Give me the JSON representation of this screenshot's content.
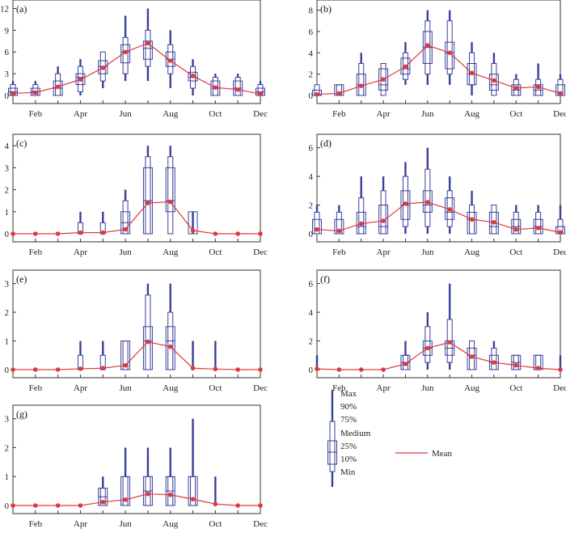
{
  "months_labeled": [
    "Feb",
    "Apr",
    "Jun",
    "Aug",
    "Oct",
    "Dec"
  ],
  "colors": {
    "box": "#3a3f9a",
    "mean": "#e0393e",
    "axis": "#333333"
  },
  "legend": {
    "stats": [
      "Max",
      "90%",
      "75%",
      "Medium",
      "25%",
      "10%",
      "Min"
    ],
    "mean_label": "Mean"
  },
  "chart_data": [
    {
      "type": "box",
      "panel_label": "(a)",
      "ylim": [
        0,
        12.5
      ],
      "yticks": [
        0,
        3,
        6,
        9,
        12
      ],
      "months": [
        1,
        2,
        3,
        4,
        5,
        6,
        7,
        8,
        9,
        10,
        11,
        12
      ],
      "min": [
        0,
        0,
        0,
        0,
        1,
        2,
        2,
        1,
        0,
        0,
        0,
        0
      ],
      "p10": [
        0,
        0,
        0,
        0.5,
        2,
        3,
        4,
        3,
        1,
        0,
        0,
        0
      ],
      "q1": [
        0,
        0,
        0,
        1.5,
        3,
        4.5,
        5,
        4,
        2,
        0,
        0,
        0
      ],
      "median": [
        0.5,
        0.5,
        1,
        2.5,
        4,
        6,
        6.5,
        5,
        2.5,
        1,
        1,
        0.5
      ],
      "q3": [
        1,
        1,
        2,
        3,
        4.8,
        7,
        7.5,
        6,
        3.2,
        2,
        2,
        1
      ],
      "p90": [
        1.5,
        1.5,
        3,
        4,
        6,
        8,
        9,
        7,
        4,
        2.5,
        2.5,
        1.5
      ],
      "max": [
        2,
        2,
        4,
        5,
        6,
        11,
        12,
        9,
        5,
        3,
        3,
        2
      ],
      "mean": [
        0.3,
        0.4,
        1.2,
        2.2,
        3.8,
        6,
        7.2,
        4.8,
        2.7,
        1.1,
        0.8,
        0.2
      ]
    },
    {
      "type": "box",
      "panel_label": "(b)",
      "ylim": [
        0,
        8.5
      ],
      "yticks": [
        0,
        2,
        4,
        6,
        8
      ],
      "months": [
        1,
        2,
        3,
        4,
        5,
        6,
        7,
        8,
        9,
        10,
        11,
        12
      ],
      "min": [
        0,
        0,
        0,
        0,
        1,
        1,
        1,
        0,
        0,
        0,
        0,
        0
      ],
      "p10": [
        0,
        0,
        0,
        0,
        1.5,
        2,
        2,
        1,
        0,
        0,
        0,
        0
      ],
      "q1": [
        0,
        0,
        0,
        0.5,
        2,
        3,
        2.5,
        1,
        0.5,
        0,
        0,
        0
      ],
      "median": [
        0,
        0,
        1,
        1,
        2.5,
        4.5,
        4,
        2,
        1,
        0.5,
        0.5,
        0
      ],
      "q3": [
        0.5,
        1,
        2,
        2.5,
        3.5,
        6,
        5,
        3,
        2,
        1,
        1,
        1
      ],
      "p90": [
        1,
        1,
        3,
        3,
        4,
        7,
        7,
        4,
        3,
        1.5,
        1.5,
        1.5
      ],
      "max": [
        1,
        1,
        4,
        3,
        5,
        8,
        8,
        5,
        4,
        2,
        3,
        2
      ],
      "mean": [
        0.1,
        0.2,
        0.9,
        1.5,
        2.7,
        4.7,
        4,
        2.1,
        1.4,
        0.7,
        0.8,
        0.2
      ]
    },
    {
      "type": "box",
      "panel_label": "(c)",
      "ylim": [
        0,
        4.3
      ],
      "yticks": [
        0,
        1,
        2,
        3,
        4
      ],
      "months": [
        1,
        2,
        3,
        4,
        5,
        6,
        7,
        8,
        9,
        10,
        11,
        12
      ],
      "min": [
        0,
        0,
        0,
        0,
        0,
        0,
        0,
        0,
        0,
        0,
        0,
        0
      ],
      "p10": [
        0,
        0,
        0,
        0,
        0,
        0,
        0,
        0,
        0,
        0,
        0,
        0
      ],
      "q1": [
        0,
        0,
        0,
        0,
        0,
        0,
        0,
        1,
        0,
        0,
        0,
        0
      ],
      "median": [
        0,
        0,
        0,
        0,
        0,
        0.5,
        1.5,
        1.5,
        0,
        0,
        0,
        0
      ],
      "q3": [
        0,
        0,
        0,
        0,
        0,
        1,
        3,
        3,
        1,
        0,
        0,
        0
      ],
      "p90": [
        0,
        0,
        0,
        0.5,
        0.5,
        1.5,
        3.5,
        3.5,
        0,
        0,
        0,
        0
      ],
      "max": [
        0,
        0,
        0,
        1,
        1,
        2,
        4,
        4,
        1,
        0,
        0,
        0
      ],
      "mean": [
        0,
        0,
        0,
        0.05,
        0.05,
        0.2,
        1.4,
        1.45,
        0.15,
        0,
        0,
        0
      ]
    },
    {
      "type": "box",
      "panel_label": "(d)",
      "ylim": [
        0,
        6.6
      ],
      "yticks": [
        0,
        2,
        4,
        6
      ],
      "months": [
        1,
        2,
        3,
        4,
        5,
        6,
        7,
        8,
        9,
        10,
        11,
        12
      ],
      "min": [
        0,
        0,
        0,
        0,
        0,
        0,
        0,
        0,
        0,
        0,
        0,
        0
      ],
      "p10": [
        0,
        0,
        0,
        0,
        0.5,
        0.5,
        0.5,
        0,
        0,
        0,
        0,
        0
      ],
      "q1": [
        0,
        0,
        0,
        0,
        1,
        1.5,
        1,
        0,
        0,
        0,
        0,
        0
      ],
      "median": [
        0,
        0,
        0.5,
        0.5,
        2,
        2,
        1.5,
        1,
        0.5,
        0.5,
        0.5,
        0
      ],
      "q3": [
        1,
        1,
        1.5,
        2,
        3,
        3,
        2.5,
        1.5,
        1.5,
        1,
        1,
        0.5
      ],
      "p90": [
        1.5,
        1.5,
        2.5,
        3,
        4,
        4.5,
        3,
        2,
        2,
        1.5,
        1.5,
        1
      ],
      "max": [
        2,
        2,
        4,
        4,
        5,
        6,
        4,
        3,
        2,
        2,
        2,
        2
      ],
      "mean": [
        0.3,
        0.2,
        0.7,
        0.9,
        2.1,
        2.2,
        1.7,
        1,
        0.8,
        0.3,
        0.4,
        0.1
      ]
    },
    {
      "type": "box",
      "panel_label": "(e)",
      "ylim": [
        0,
        3.3
      ],
      "yticks": [
        0,
        1,
        2,
        3
      ],
      "months": [
        1,
        2,
        3,
        4,
        5,
        6,
        7,
        8,
        9,
        10,
        11,
        12
      ],
      "min": [
        0,
        0,
        0,
        0,
        0,
        0,
        0,
        0,
        0,
        0,
        0,
        0
      ],
      "p10": [
        0,
        0,
        0,
        0,
        0,
        0,
        0,
        0,
        0,
        0,
        0,
        0
      ],
      "q1": [
        0,
        0,
        0,
        0,
        0,
        0,
        0,
        0,
        0,
        0,
        0,
        0
      ],
      "median": [
        0,
        0,
        0,
        0,
        0,
        0,
        1,
        1,
        0,
        0,
        0,
        0
      ],
      "q3": [
        0,
        0,
        0,
        0,
        0,
        1,
        1.5,
        1.5,
        0,
        0,
        0,
        0
      ],
      "p90": [
        0,
        0,
        0,
        0.5,
        0.5,
        1,
        2.6,
        2,
        0,
        0,
        0,
        0
      ],
      "max": [
        0,
        0,
        0,
        1,
        1,
        1,
        3,
        3,
        1,
        1,
        0,
        0
      ],
      "mean": [
        0,
        0,
        0,
        0.03,
        0.05,
        0.15,
        0.97,
        0.8,
        0.05,
        0.02,
        0,
        0
      ]
    },
    {
      "type": "box",
      "panel_label": "(f)",
      "ylim": [
        0,
        6.6
      ],
      "yticks": [
        0,
        2,
        4,
        6
      ],
      "months": [
        1,
        2,
        3,
        4,
        5,
        6,
        7,
        8,
        9,
        10,
        11,
        12
      ],
      "min": [
        0,
        0,
        0,
        0,
        0,
        0,
        0,
        0,
        0,
        0,
        0,
        0
      ],
      "p10": [
        0,
        0,
        0,
        0,
        0,
        0.5,
        0.5,
        0,
        0,
        0,
        0,
        0
      ],
      "q1": [
        0,
        0,
        0,
        0,
        0,
        1,
        1,
        0,
        0,
        0,
        0,
        0
      ],
      "median": [
        0,
        0,
        0,
        0,
        0.5,
        1.5,
        1.5,
        1,
        0.5,
        0.5,
        0,
        0
      ],
      "q3": [
        0,
        0,
        0,
        0,
        1,
        2,
        2,
        1.5,
        1,
        1,
        1,
        0
      ],
      "p90": [
        0,
        0,
        0,
        0,
        1,
        3,
        3.5,
        2,
        1.5,
        1,
        1,
        0
      ],
      "max": [
        1,
        0,
        0,
        0,
        2,
        4,
        6,
        2,
        2,
        1,
        1,
        1
      ],
      "mean": [
        0.05,
        0,
        0,
        0,
        0.4,
        1.5,
        1.9,
        0.9,
        0.5,
        0.3,
        0.1,
        0
      ]
    },
    {
      "type": "box",
      "panel_label": "(g)",
      "ylim": [
        0,
        3.3
      ],
      "yticks": [
        0,
        1,
        2,
        3
      ],
      "months": [
        1,
        2,
        3,
        4,
        5,
        6,
        7,
        8,
        9,
        10,
        11,
        12
      ],
      "min": [
        0,
        0,
        0,
        0,
        0,
        0,
        0,
        0,
        0,
        0,
        0,
        0
      ],
      "p10": [
        0,
        0,
        0,
        0,
        0,
        0,
        0,
        0,
        0,
        0,
        0,
        0
      ],
      "q1": [
        0,
        0,
        0,
        0,
        0,
        0,
        0,
        0,
        0,
        0,
        0,
        0
      ],
      "median": [
        0,
        0,
        0,
        0,
        0.3,
        0,
        0.5,
        0.5,
        0,
        0,
        0,
        0
      ],
      "q3": [
        0,
        0,
        0,
        0,
        0.6,
        1,
        1,
        1,
        1,
        0,
        0,
        0
      ],
      "p90": [
        0,
        0,
        0,
        0,
        0.6,
        1,
        1,
        1,
        1,
        0,
        0,
        0
      ],
      "max": [
        0,
        0,
        0,
        0,
        1,
        2,
        2,
        2,
        3,
        1,
        0,
        0
      ],
      "mean": [
        0,
        0,
        0,
        0,
        0.12,
        0.2,
        0.4,
        0.37,
        0.22,
        0.05,
        0,
        0
      ]
    }
  ]
}
